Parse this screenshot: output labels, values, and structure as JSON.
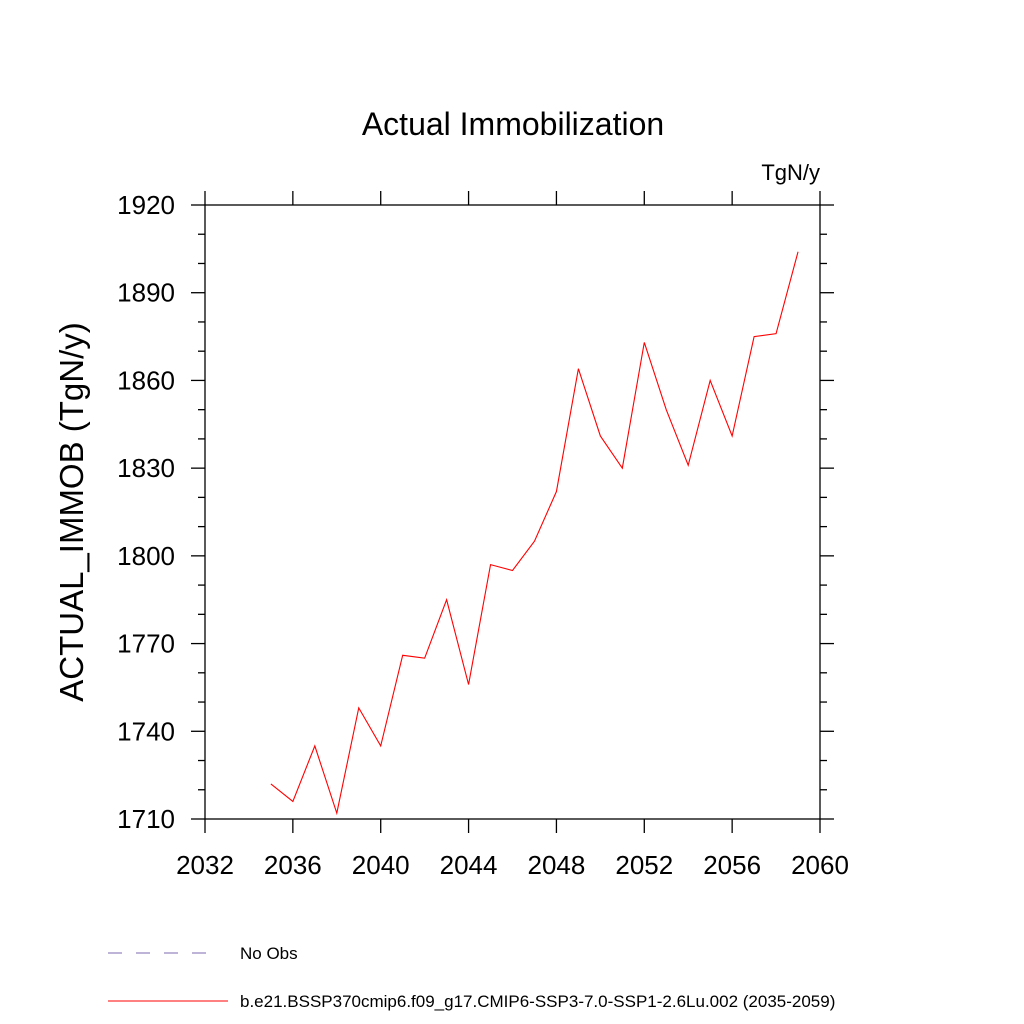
{
  "chart_data": {
    "type": "line",
    "title": "Actual Immobilization",
    "units_label": "TgN/y",
    "ylabel": "ACTUAL_IMMOB  (TgN/y)",
    "xlabel": "",
    "xlim": [
      2032,
      2060
    ],
    "ylim": [
      1710,
      1920
    ],
    "x_ticks": [
      2032,
      2036,
      2040,
      2044,
      2048,
      2052,
      2056,
      2060
    ],
    "y_ticks": [
      1710,
      1740,
      1770,
      1800,
      1830,
      1860,
      1890,
      1920
    ],
    "grid": false,
    "legend_placement": "bottom",
    "series": [
      {
        "name": "b.e21.BSSP370cmip6.f09_g17.CMIP6-SSP3-7.0-SSP1-2.6Lu.002 (2035-2059)",
        "color": "#ff0000",
        "x": [
          2035,
          2036,
          2037,
          2038,
          2039,
          2040,
          2041,
          2042,
          2043,
          2044,
          2045,
          2046,
          2047,
          2048,
          2049,
          2050,
          2051,
          2052,
          2053,
          2054,
          2055,
          2056,
          2057,
          2058,
          2059
        ],
        "y": [
          1722,
          1716,
          1735,
          1712,
          1748,
          1735,
          1766,
          1765,
          1785,
          1756,
          1797,
          1795,
          1805,
          1822,
          1864,
          1841,
          1830,
          1873,
          1850,
          1831,
          1860,
          1841,
          1875,
          1876,
          1904
        ]
      }
    ],
    "legend": [
      {
        "label": "No Obs",
        "color": "#7b68b0",
        "style": "dashed"
      },
      {
        "label": "b.e21.BSSP370cmip6.f09_g17.CMIP6-SSP3-7.0-SSP1-2.6Lu.002 (2035-2059)",
        "color": "#ff0000",
        "style": "solid"
      }
    ]
  }
}
